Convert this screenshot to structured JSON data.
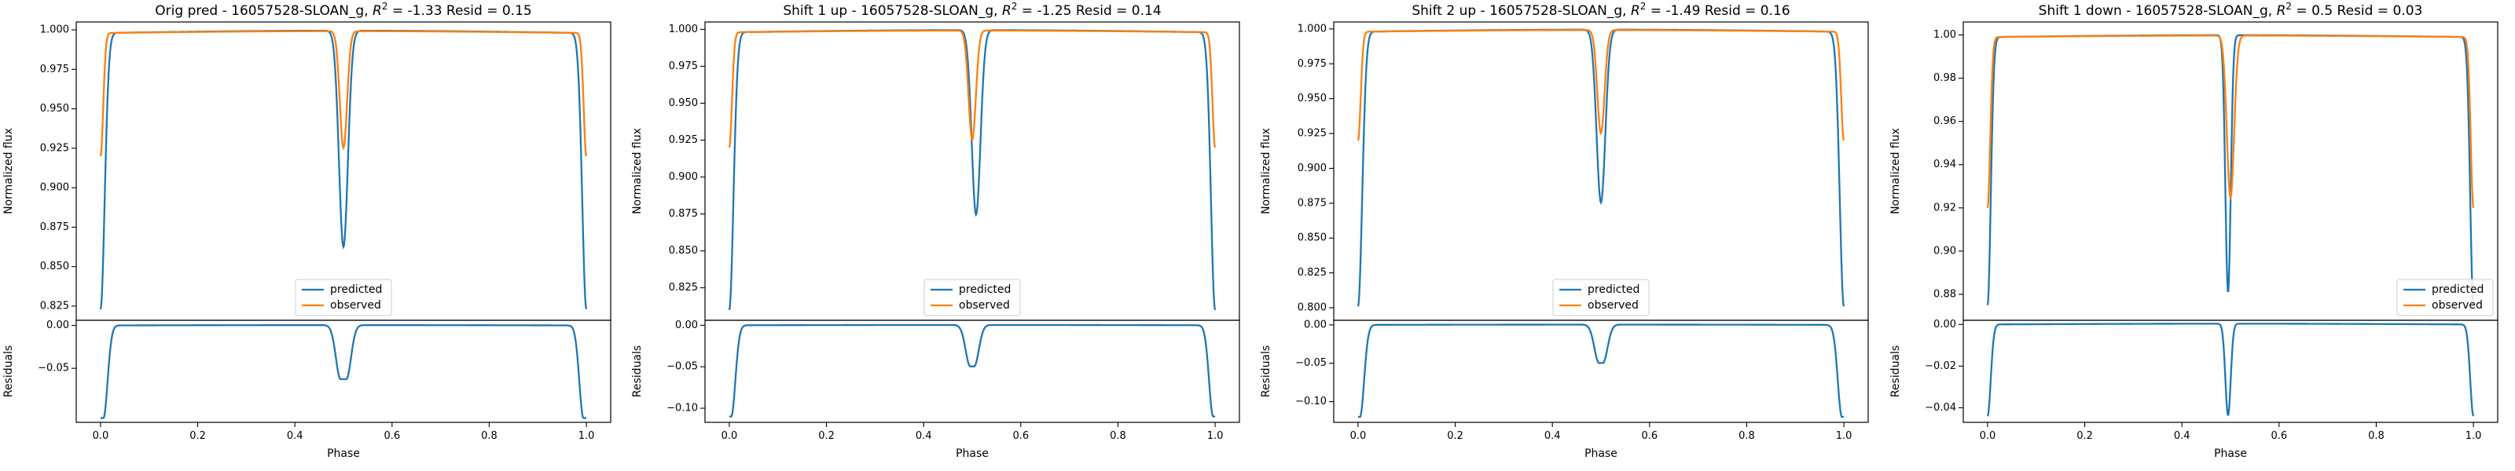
{
  "colors": {
    "predicted": "#1f77b4",
    "observed": "#ff7f0e",
    "background": "#ffffff",
    "axes": "#000000"
  },
  "chart_data": [
    {
      "type": "line",
      "title": "Orig pred - 16057528-SLOAN_g, R² = -1.33 Resid = 0.15",
      "title_parts": {
        "prefix": "Orig pred - 16057528-SLOAN_g, ",
        "r2_value": "-1.33",
        "suffix": " Resid = 0.15"
      },
      "legend_placement": "lower-center",
      "grid": false,
      "top_panel": {
        "ylabel": "Normalized flux",
        "ylim": [
          0.816,
          1.005
        ],
        "yticks": [
          0.825,
          0.85,
          0.875,
          0.9,
          0.925,
          0.95,
          0.975,
          1.0
        ],
        "ytick_labels": [
          "0.825",
          "0.850",
          "0.875",
          "0.900",
          "0.925",
          "0.950",
          "0.975",
          "1.000"
        ],
        "series": [
          {
            "name": "predicted",
            "edge_depth": 0.823,
            "edge_width": 0.0085,
            "primary_depth": 0.861,
            "primary_width": 0.0092,
            "center": 0.5,
            "baseline": 0.998,
            "bump": 0.0025,
            "flat": 0
          },
          {
            "name": "observed",
            "edge_depth": 0.92,
            "edge_width": 0.0055,
            "primary_depth": 0.924,
            "primary_width": 0.0075,
            "center": 0.5,
            "baseline": 0.998,
            "bump": 0.002,
            "flat": 0
          }
        ]
      },
      "bottom_panel": {
        "ylabel": "Residuals",
        "xlabel": "Phase",
        "xlim": [
          -0.05,
          1.05
        ],
        "xticks": [
          0.0,
          0.2,
          0.4,
          0.6,
          0.8,
          1.0
        ],
        "xtick_labels": [
          "0.0",
          "0.2",
          "0.4",
          "0.6",
          "0.8",
          "1.0"
        ],
        "ylim": [
          -0.113,
          0.006
        ],
        "yticks": [
          -0.05,
          0.0
        ],
        "ytick_labels": [
          "−0.05",
          "0.00"
        ],
        "series": [
          {
            "name": "residual",
            "edge_depth": -0.108,
            "edge_width": 0.0085,
            "primary_depth": -0.063,
            "primary_width": 0.0095,
            "center": 0.5,
            "baseline": 0.0,
            "bump": 0.0006,
            "flat": 0.006
          }
        ]
      }
    },
    {
      "type": "line",
      "title": "Shift 1 up - 16057528-SLOAN_g, R² = -1.25 Resid = 0.14",
      "title_parts": {
        "prefix": "Shift 1 up - 16057528-SLOAN_g, ",
        "r2_value": "-1.25",
        "suffix": " Resid = 0.14"
      },
      "legend_placement": "lower-center",
      "grid": false,
      "top_panel": {
        "ylabel": "Normalized flux",
        "ylim": [
          0.803,
          1.005
        ],
        "yticks": [
          0.825,
          0.85,
          0.875,
          0.9,
          0.925,
          0.95,
          0.975,
          1.0
        ],
        "ytick_labels": [
          "0.825",
          "0.850",
          "0.875",
          "0.900",
          "0.925",
          "0.950",
          "0.975",
          "1.000"
        ],
        "series": [
          {
            "name": "predicted",
            "edge_depth": 0.81,
            "edge_width": 0.0085,
            "primary_depth": 0.873,
            "primary_width": 0.009,
            "center": 0.508,
            "baseline": 0.998,
            "bump": 0.0025,
            "flat": 0
          },
          {
            "name": "observed",
            "edge_depth": 0.92,
            "edge_width": 0.0055,
            "primary_depth": 0.924,
            "primary_width": 0.0075,
            "center": 0.5,
            "baseline": 0.998,
            "bump": 0.002,
            "flat": 0
          }
        ]
      },
      "bottom_panel": {
        "ylabel": "Residuals",
        "xlabel": "Phase",
        "xlim": [
          -0.05,
          1.05
        ],
        "xticks": [
          0.0,
          0.2,
          0.4,
          0.6,
          0.8,
          1.0
        ],
        "xtick_labels": [
          "0.0",
          "0.2",
          "0.4",
          "0.6",
          "0.8",
          "1.0"
        ],
        "ylim": [
          -0.117,
          0.006
        ],
        "yticks": [
          -0.1,
          -0.05,
          0.0
        ],
        "ytick_labels": [
          "−0.10",
          "−0.05",
          "0.00"
        ],
        "series": [
          {
            "name": "residual",
            "edge_depth": -0.11,
            "edge_width": 0.0085,
            "primary_depth": -0.05,
            "primary_width": 0.0095,
            "center": 0.5,
            "baseline": 0.0,
            "bump": 0.0006,
            "flat": 0.004
          }
        ]
      }
    },
    {
      "type": "line",
      "title": "Shift 2 up - 16057528-SLOAN_g, R² = -1.49 Resid = 0.16",
      "title_parts": {
        "prefix": "Shift 2 up - 16057528-SLOAN_g, ",
        "r2_value": "-1.49",
        "suffix": " Resid = 0.16"
      },
      "legend_placement": "lower-center",
      "grid": false,
      "top_panel": {
        "ylabel": "Normalized flux",
        "ylim": [
          0.791,
          1.005
        ],
        "yticks": [
          0.8,
          0.825,
          0.85,
          0.875,
          0.9,
          0.925,
          0.95,
          0.975,
          1.0
        ],
        "ytick_labels": [
          "0.800",
          "0.825",
          "0.850",
          "0.875",
          "0.900",
          "0.925",
          "0.950",
          "0.975",
          "1.000"
        ],
        "series": [
          {
            "name": "predicted",
            "edge_depth": 0.801,
            "edge_width": 0.0085,
            "primary_depth": 0.874,
            "primary_width": 0.009,
            "center": 0.5,
            "baseline": 0.998,
            "bump": 0.0025,
            "flat": 0
          },
          {
            "name": "observed",
            "edge_depth": 0.92,
            "edge_width": 0.0055,
            "primary_depth": 0.924,
            "primary_width": 0.0075,
            "center": 0.5,
            "baseline": 0.998,
            "bump": 0.002,
            "flat": 0
          }
        ]
      },
      "bottom_panel": {
        "ylabel": "Residuals",
        "xlabel": "Phase",
        "xlim": [
          -0.05,
          1.05
        ],
        "xticks": [
          0.0,
          0.2,
          0.4,
          0.6,
          0.8,
          1.0
        ],
        "xtick_labels": [
          "0.0",
          "0.2",
          "0.4",
          "0.6",
          "0.8",
          "1.0"
        ],
        "ylim": [
          -0.127,
          0.006
        ],
        "yticks": [
          -0.1,
          -0.05,
          0.0
        ],
        "ytick_labels": [
          "−0.10",
          "−0.05",
          "0.00"
        ],
        "series": [
          {
            "name": "residual",
            "edge_depth": -0.12,
            "edge_width": 0.0085,
            "primary_depth": -0.05,
            "primary_width": 0.0095,
            "center": 0.5,
            "baseline": 0.0,
            "bump": 0.0006,
            "flat": 0.004
          }
        ]
      }
    },
    {
      "type": "line",
      "title": "Shift 1 down - 16057528-SLOAN_g, R² = 0.5 Resid = 0.03",
      "title_parts": {
        "prefix": "Shift 1 down - 16057528-SLOAN_g, ",
        "r2_value": "0.5",
        "suffix": " Resid = 0.03"
      },
      "legend_placement": "lower-right",
      "grid": false,
      "top_panel": {
        "ylabel": "Normalized flux",
        "ylim": [
          0.868,
          1.006
        ],
        "yticks": [
          0.88,
          0.9,
          0.92,
          0.94,
          0.96,
          0.98,
          1.0
        ],
        "ytick_labels": [
          "0.88",
          "0.90",
          "0.92",
          "0.94",
          "0.96",
          "0.98",
          "1.00"
        ],
        "series": [
          {
            "name": "predicted",
            "edge_depth": 0.875,
            "edge_width": 0.0065,
            "primary_depth": 0.88,
            "primary_width": 0.0055,
            "center": 0.495,
            "baseline": 0.999,
            "bump": 0.0015,
            "flat": 0
          },
          {
            "name": "observed",
            "edge_depth": 0.92,
            "edge_width": 0.0055,
            "primary_depth": 0.924,
            "primary_width": 0.0075,
            "center": 0.5,
            "baseline": 0.999,
            "bump": 0.0012,
            "flat": 0
          }
        ]
      },
      "bottom_panel": {
        "ylabel": "Residuals",
        "xlabel": "Phase",
        "xlim": [
          -0.05,
          1.05
        ],
        "xticks": [
          0.0,
          0.2,
          0.4,
          0.6,
          0.8,
          1.0
        ],
        "xtick_labels": [
          "0.0",
          "0.2",
          "0.4",
          "0.6",
          "0.8",
          "1.0"
        ],
        "ylim": [
          -0.047,
          0.002
        ],
        "yticks": [
          -0.04,
          -0.02,
          0.0
        ],
        "ytick_labels": [
          "−0.04",
          "−0.02",
          "0.00"
        ],
        "series": [
          {
            "name": "residual",
            "edge_depth": -0.044,
            "edge_width": 0.0065,
            "primary_depth": -0.044,
            "primary_width": 0.0055,
            "center": 0.495,
            "baseline": 0.0,
            "bump": 0.0006,
            "flat": 0
          }
        ]
      }
    }
  ]
}
